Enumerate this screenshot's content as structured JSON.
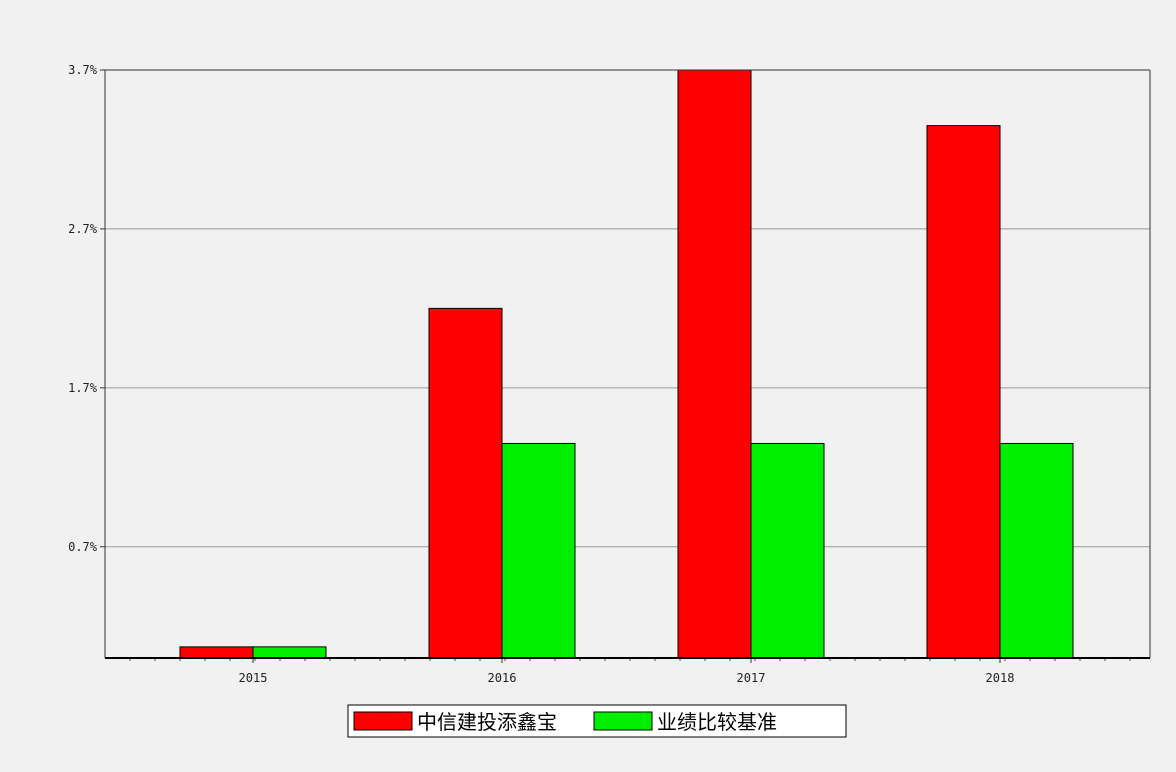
{
  "chart_data": {
    "type": "bar",
    "categories": [
      "2015",
      "2016",
      "2017",
      "2018"
    ],
    "series": [
      {
        "name": "中信建投添鑫宝",
        "color": "#ff0000",
        "values": [
          0.07,
          2.2,
          3.7,
          3.35
        ]
      },
      {
        "name": "业绩比较基准",
        "color": "#00ee00",
        "values": [
          0.07,
          1.35,
          1.35,
          1.35
        ]
      }
    ],
    "y_ticks": [
      {
        "value": 0.7,
        "label": "0.7%"
      },
      {
        "value": 1.7,
        "label": "1.7%"
      },
      {
        "value": 2.7,
        "label": "2.7%"
      },
      {
        "value": 3.7,
        "label": "3.7%"
      }
    ],
    "ylim": [
      0,
      3.7
    ],
    "grid": true,
    "legend_position": "bottom-center"
  }
}
